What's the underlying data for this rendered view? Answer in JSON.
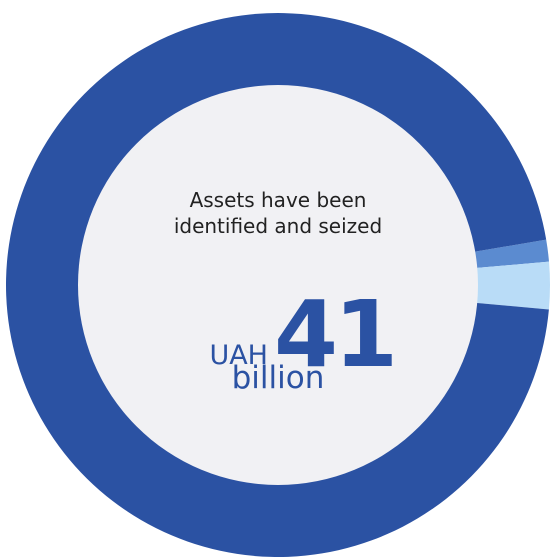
{
  "chart_data": {
    "type": "donut",
    "center_text": [
      "Assets have been",
      "identified and seized"
    ],
    "currency": "UAH",
    "total": 41,
    "unit": "billion",
    "series": [
      {
        "color": "#5b8bd0",
        "values": [
          1.3
        ]
      },
      {
        "color": "#b9dcf7",
        "values": [
          2.8
        ]
      },
      {
        "color": "#2b52a3",
        "values": [
          95.9
        ]
      }
    ]
  }
}
